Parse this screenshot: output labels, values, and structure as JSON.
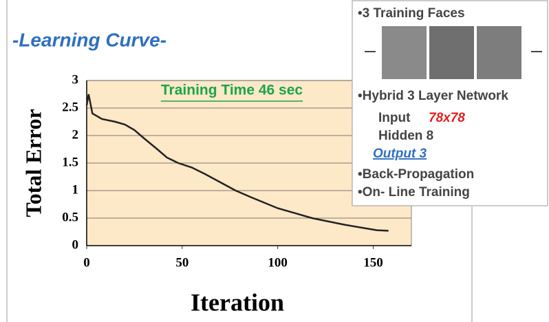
{
  "chart_data": {
    "type": "line",
    "title": "-Learning Curve-",
    "annotation": "Training Time 46 sec",
    "x_label": "Iteration",
    "y_label": "Total Error",
    "x": [
      0,
      1,
      3,
      8,
      15,
      20,
      25,
      30,
      37,
      42,
      48,
      55,
      62,
      70,
      78,
      86,
      93,
      100,
      110,
      118,
      125,
      135,
      145,
      152,
      158
    ],
    "values": [
      2.55,
      2.75,
      2.4,
      2.3,
      2.25,
      2.2,
      2.1,
      1.95,
      1.75,
      1.6,
      1.5,
      1.42,
      1.3,
      1.15,
      1.0,
      0.88,
      0.78,
      0.68,
      0.58,
      0.5,
      0.45,
      0.38,
      0.32,
      0.28,
      0.27
    ],
    "color": "#222222",
    "xlim": [
      0,
      170
    ],
    "ylim": [
      0,
      3
    ],
    "xticks": [
      0,
      50,
      100,
      150
    ],
    "yticks": [
      0,
      0.5,
      1,
      1.5,
      2,
      2.5,
      3
    ],
    "grid": true
  },
  "info_box": {
    "faces_heading": "•3 Training Faces",
    "network": "•Hybrid 3 Layer Network",
    "input_label": "Input",
    "input_value": "78x78",
    "hidden": "Hidden 8",
    "output": "Output  3",
    "method": "•Back-Propagation",
    "training": "•On- Line Training"
  }
}
